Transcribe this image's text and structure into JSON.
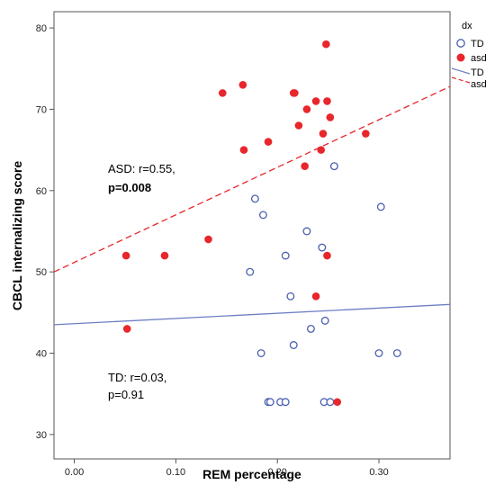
{
  "chart_data": {
    "type": "scatter",
    "xlabel": "REM percentage",
    "ylabel": "CBCL internalizing score",
    "xlim": [
      -0.02,
      0.37
    ],
    "ylim": [
      27,
      82
    ],
    "x_ticks": [
      "0.00",
      "0.10",
      "0.20",
      "0.30"
    ],
    "x_tick_values": [
      0.0,
      0.1,
      0.2,
      0.3
    ],
    "y_ticks": [
      "30",
      "40",
      "50",
      "60",
      "70",
      "80"
    ],
    "y_tick_values": [
      30,
      40,
      50,
      60,
      70,
      80
    ],
    "grid": false,
    "legend_position": "right",
    "legend": {
      "title": "dx",
      "markers": [
        {
          "label": "TD",
          "style": "open-circle",
          "color": "#4a5fb0"
        },
        {
          "label": "asd",
          "style": "filled-circle",
          "color": "#e8262b"
        }
      ],
      "lines": [
        {
          "label": "TD",
          "style": "solid",
          "color": "#6d7fc4"
        },
        {
          "label": "asd",
          "style": "dashed",
          "color": "#e8262b"
        }
      ]
    },
    "annotations": {
      "asd_line1": "ASD: r=0.55,",
      "asd_line2": "p=0.008",
      "td_line1": "TD: r=0.03,",
      "td_line2": "p=0.91"
    },
    "series": [
      {
        "name": "TD",
        "marker": "open-circle",
        "color": "#4a5fb0",
        "points": [
          [
            0.178,
            59
          ],
          [
            0.186,
            57
          ],
          [
            0.173,
            50
          ],
          [
            0.256,
            63
          ],
          [
            0.302,
            58
          ],
          [
            0.229,
            55
          ],
          [
            0.244,
            53
          ],
          [
            0.208,
            52
          ],
          [
            0.213,
            47
          ],
          [
            0.247,
            44
          ],
          [
            0.233,
            43
          ],
          [
            0.216,
            41
          ],
          [
            0.184,
            40
          ],
          [
            0.3,
            40
          ],
          [
            0.318,
            40
          ],
          [
            0.191,
            34
          ],
          [
            0.193,
            34
          ],
          [
            0.203,
            34
          ],
          [
            0.208,
            34
          ],
          [
            0.246,
            34
          ],
          [
            0.252,
            34
          ]
        ]
      },
      {
        "name": "asd",
        "marker": "filled-circle",
        "color": "#e8262b",
        "points": [
          [
            0.248,
            78
          ],
          [
            0.146,
            72
          ],
          [
            0.166,
            73
          ],
          [
            0.216,
            72
          ],
          [
            0.217,
            72
          ],
          [
            0.238,
            71
          ],
          [
            0.249,
            71
          ],
          [
            0.229,
            70
          ],
          [
            0.252,
            69
          ],
          [
            0.221,
            68
          ],
          [
            0.245,
            67
          ],
          [
            0.287,
            67
          ],
          [
            0.191,
            66
          ],
          [
            0.167,
            65
          ],
          [
            0.243,
            65
          ],
          [
            0.227,
            63
          ],
          [
            0.051,
            52
          ],
          [
            0.089,
            52
          ],
          [
            0.132,
            54
          ],
          [
            0.249,
            52
          ],
          [
            0.238,
            47
          ],
          [
            0.052,
            43
          ],
          [
            0.259,
            34
          ]
        ]
      }
    ],
    "fit_lines": [
      {
        "name": "TD",
        "style": "solid",
        "color": "#6d7fc4",
        "y_at_xmin": 43.5,
        "y_at_xmax": 46.0
      },
      {
        "name": "asd",
        "style": "dashed",
        "color": "#e8262b",
        "y_at_xmin": 50.0,
        "y_at_xmax": 72.8
      }
    ]
  }
}
